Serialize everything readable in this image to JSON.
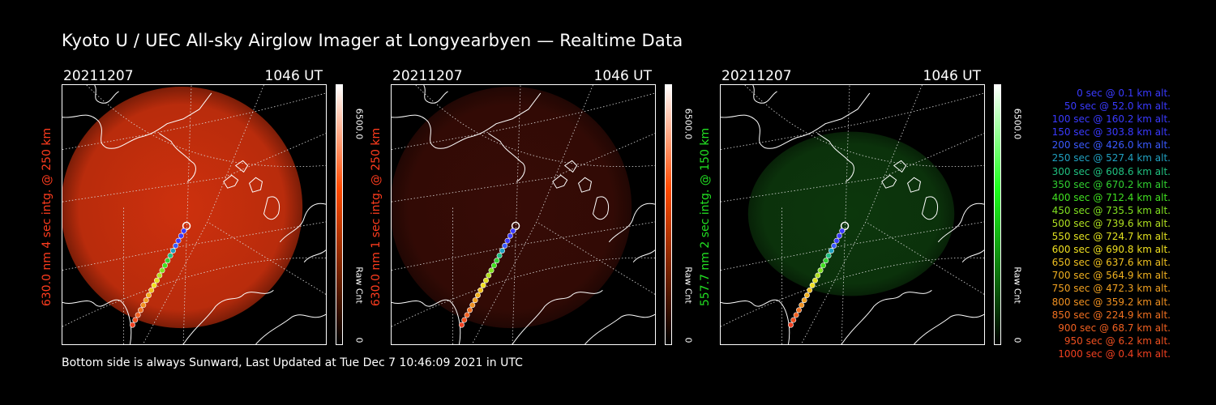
{
  "title": "Kyoto U / UEC All-sky Airglow Imager at Longyearbyen — Realtime Data",
  "footer": "Bottom side is always Sunward, Last Updated at Tue Dec  7 10:46:09 2021 in UTC",
  "panels": [
    {
      "date": "20211207",
      "ut": "1046 UT",
      "ylabel": "630.0 nm 4 sec intg. @ 250 km",
      "label_color": "#ff3c1e",
      "cb_max": "6500.0",
      "cb_label": "Raw Cnt",
      "cb_min": "0",
      "cb_color": "#ff4a00",
      "glow": "#d8330e",
      "glow_opacity": 0.95
    },
    {
      "date": "20211207",
      "ut": "1046 UT",
      "ylabel": "630.0 nm 1 sec intg. @ 250 km",
      "label_color": "#ff3c1e",
      "cb_max": "6500.0",
      "cb_label": "Raw Cnt",
      "cb_min": "0",
      "cb_color": "#ff4a00",
      "glow": "#3a0c06",
      "glow_opacity": 0.95
    },
    {
      "date": "20211207",
      "ut": "1046 UT",
      "ylabel": "557.7 nm 2 sec intg. @ 150 km",
      "label_color": "#22e022",
      "cb_max": "6500.0",
      "cb_label": "Raw Cnt",
      "cb_min": "0",
      "cb_color": "#1cff1c",
      "glow": "#0d3a0d",
      "glow_opacity": 0.95
    }
  ],
  "legend": [
    {
      "text": "0 sec @   0.1 km alt.",
      "color": "#3a3aff"
    },
    {
      "text": "50 sec @  52.0 km alt.",
      "color": "#3a3aff"
    },
    {
      "text": "100 sec @ 160.2 km alt.",
      "color": "#3a3aff"
    },
    {
      "text": "150 sec @ 303.8 km alt.",
      "color": "#3a3aff"
    },
    {
      "text": "200 sec @ 426.0 km alt.",
      "color": "#3a5aff"
    },
    {
      "text": "250 sec @ 527.4 km alt.",
      "color": "#20a0c0"
    },
    {
      "text": "300 sec @ 608.6 km alt.",
      "color": "#20c080"
    },
    {
      "text": "350 sec @ 670.2 km alt.",
      "color": "#30d030"
    },
    {
      "text": "400 sec @ 712.4 km alt.",
      "color": "#40e020"
    },
    {
      "text": "450 sec @ 735.5 km alt.",
      "color": "#80e020"
    },
    {
      "text": "500 sec @ 739.6 km alt.",
      "color": "#b0e020"
    },
    {
      "text": "550 sec @ 724.7 km alt.",
      "color": "#e0e020"
    },
    {
      "text": "600 sec @ 690.8 km alt.",
      "color": "#f0e020"
    },
    {
      "text": "650 sec @ 637.6 km alt.",
      "color": "#f0c020"
    },
    {
      "text": "700 sec @ 564.9 km alt.",
      "color": "#f0b020"
    },
    {
      "text": "750 sec @ 472.3 km alt.",
      "color": "#f0a020"
    },
    {
      "text": "800 sec @ 359.2 km alt.",
      "color": "#f09020"
    },
    {
      "text": "850 sec @ 224.9 km alt.",
      "color": "#f07020"
    },
    {
      "text": "900 sec @  68.7 km alt.",
      "color": "#f06020"
    },
    {
      "text": "950 sec @   6.2 km alt.",
      "color": "#f05020"
    },
    {
      "text": "1000 sec @   0.4 km alt.",
      "color": "#f04020"
    }
  ]
}
